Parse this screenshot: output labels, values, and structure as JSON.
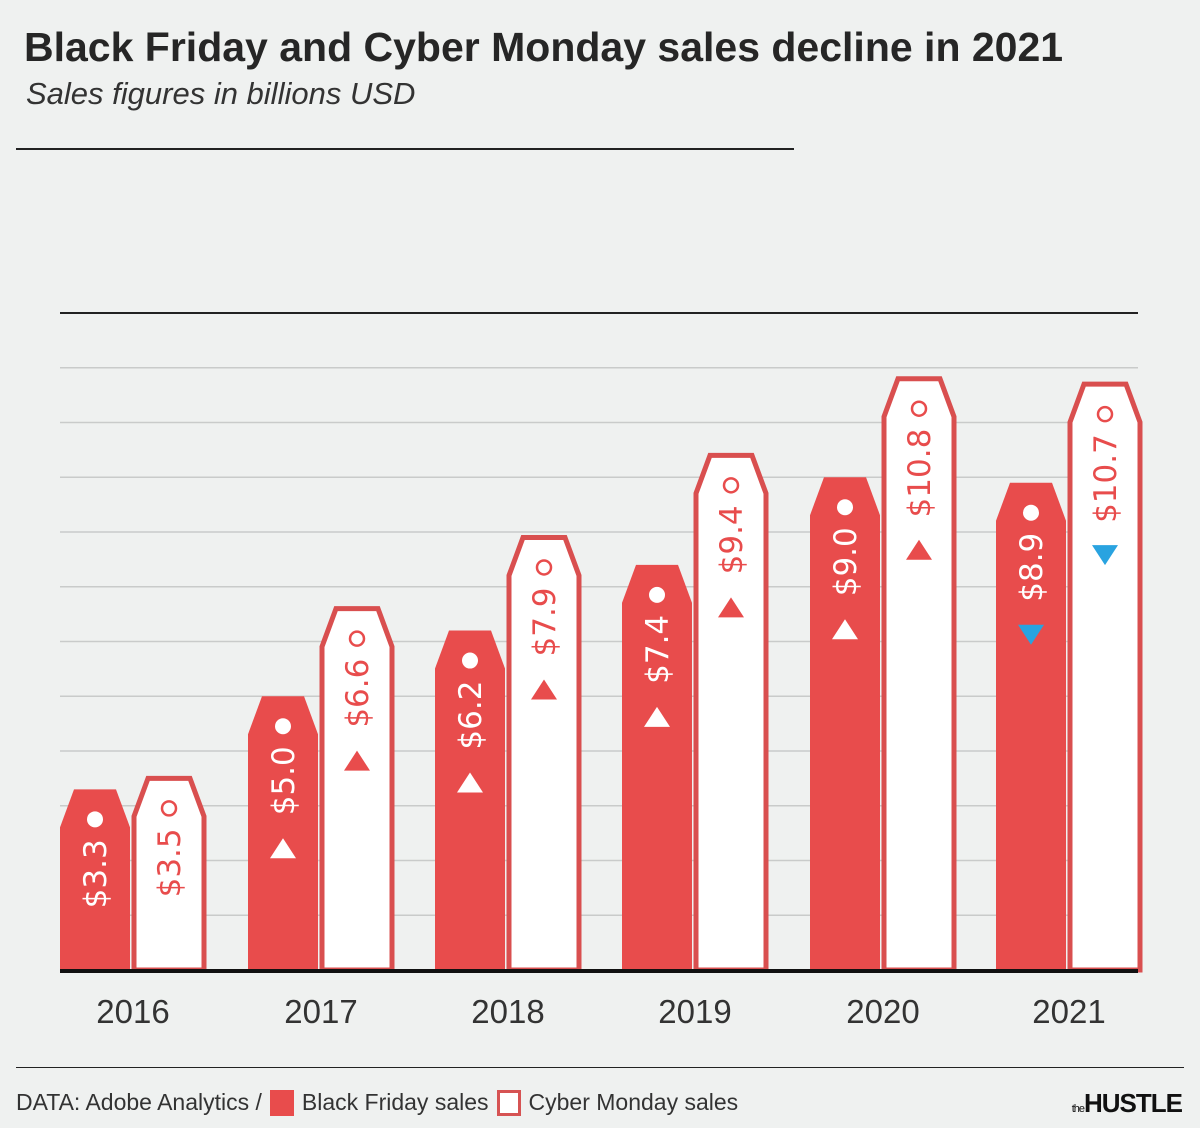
{
  "chart_data": {
    "type": "bar",
    "title": "Black Friday and Cyber Monday sales decline in 2021",
    "subtitle": "Sales figures in billions USD",
    "categories": [
      "2016",
      "2017",
      "2018",
      "2019",
      "2020",
      "2021"
    ],
    "series": [
      {
        "name": "Black Friday sales",
        "values": [
          3.3,
          5.0,
          6.2,
          7.4,
          9.0,
          8.9
        ],
        "labels": [
          "$3.3",
          "$5.0",
          "$6.2",
          "$7.4",
          "$9.0",
          "$8.9"
        ],
        "color": "#e84c4c"
      },
      {
        "name": "Cyber Monday sales",
        "values": [
          3.5,
          6.6,
          7.9,
          9.4,
          10.8,
          10.7
        ],
        "labels": [
          "$3.5",
          "$6.6",
          "$7.9",
          "$9.4",
          "$10.8",
          "$10.7"
        ],
        "color": "#ffffff"
      }
    ],
    "trend": [
      [
        "none",
        "up",
        "up",
        "up",
        "up",
        "down"
      ],
      [
        "none",
        "up",
        "up",
        "up",
        "up",
        "down"
      ]
    ],
    "ylim": [
      0,
      12
    ],
    "grid": true,
    "colors": {
      "up_bf": "#ffffff",
      "up_cm": "#e84c4c",
      "down": "#29a3e0",
      "accent": "#e84c4c"
    }
  },
  "footer": {
    "source": "DATA: Adobe Analytics /",
    "legend_bf": "Black Friday sales",
    "legend_cm": "Cyber Monday sales",
    "brand_small": "the",
    "brand": "HUSTLE"
  }
}
